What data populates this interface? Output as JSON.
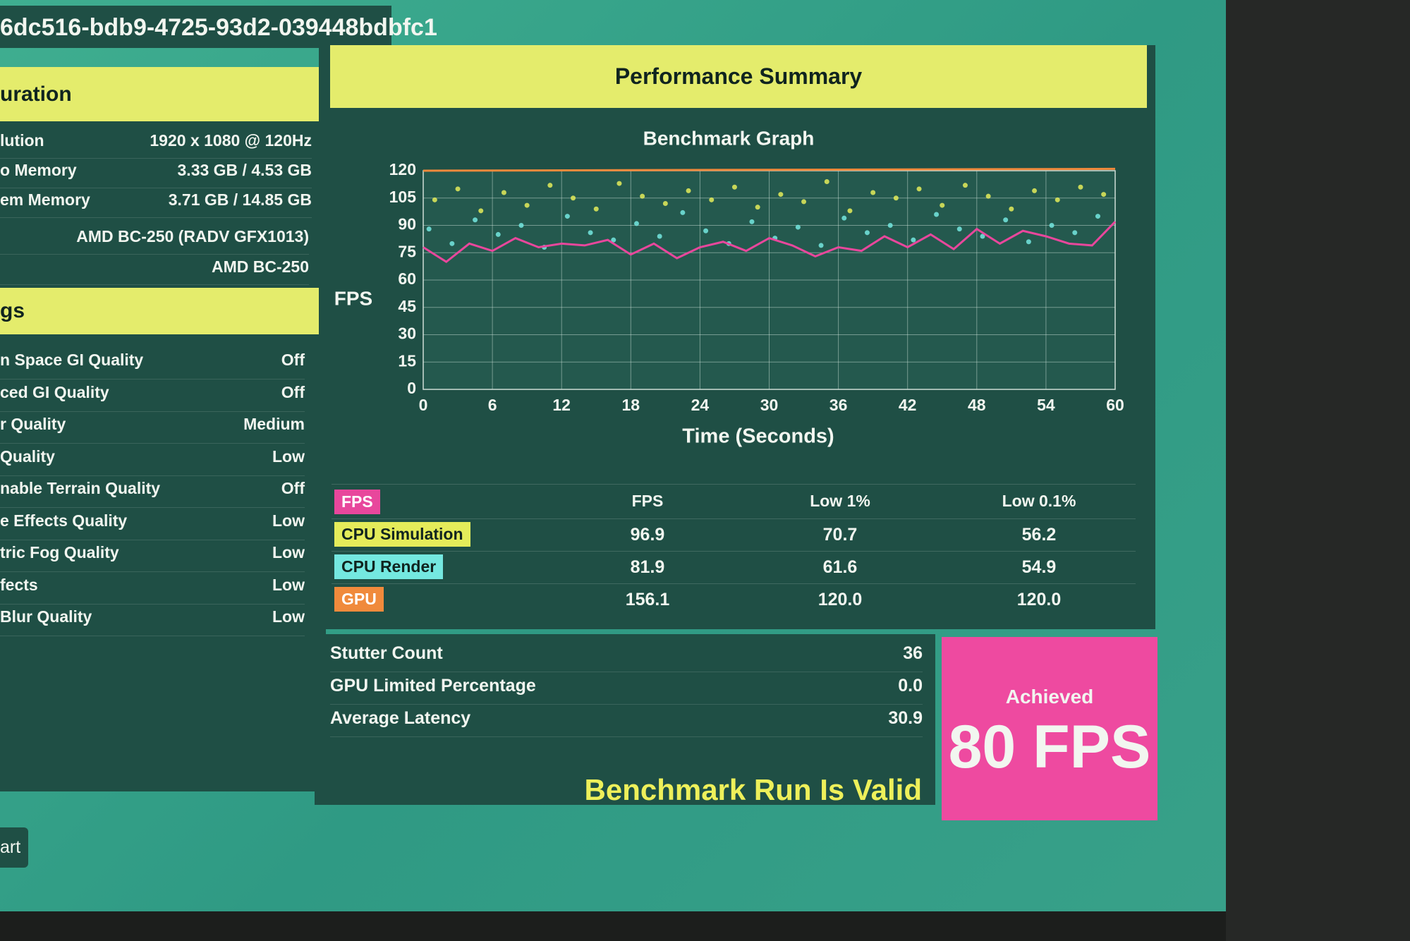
{
  "header": {
    "id": "6dc516-bdb9-4725-93d2-039448bdbfc1"
  },
  "config": {
    "title": "uration",
    "rows": [
      [
        "lution",
        "1920 x 1080 @ 120Hz"
      ],
      [
        "o Memory",
        "3.33 GB / 4.53 GB"
      ],
      [
        "em Memory",
        "3.71 GB / 14.85 GB"
      ]
    ],
    "gpu": [
      "AMD BC-250 (RADV GFX1013)",
      "AMD BC-250"
    ]
  },
  "settings": {
    "title": "gs",
    "rows": [
      [
        "n Space GI Quality",
        "Off"
      ],
      [
        "ced GI Quality",
        "Off"
      ],
      [
        "r Quality",
        "Medium"
      ],
      [
        "Quality",
        "Low"
      ],
      [
        "nable Terrain Quality",
        "Off"
      ],
      [
        "e Effects Quality",
        "Low"
      ],
      [
        "tric Fog Quality",
        "Low"
      ],
      [
        "fects",
        "Low"
      ],
      [
        "Blur Quality",
        "Low"
      ]
    ]
  },
  "button": "art",
  "summary": {
    "title": "Performance Summary",
    "columns": [
      "FPS",
      "Low 1%",
      "Low 0.1%"
    ],
    "rows": [
      [
        "96.9",
        "70.7",
        "56.2"
      ],
      [
        "81.9",
        "61.6",
        "54.9"
      ],
      [
        "156.1",
        "120.0",
        "120.0"
      ]
    ],
    "stats": [
      [
        "Stutter Count",
        "36"
      ],
      [
        "GPU Limited Percentage",
        "0.0"
      ],
      [
        "Average Latency",
        "30.9"
      ]
    ],
    "valid": "Benchmark Run Is Valid",
    "achieved_label": "Achieved",
    "achieved_value": "80 FPS"
  },
  "chart_data": {
    "type": "line",
    "title": "Benchmark Graph",
    "y_label": "FPS",
    "x_label": "Time (Seconds)",
    "xlim": [
      0,
      60
    ],
    "ylim": [
      0,
      120
    ],
    "xticks": [
      0,
      6,
      12,
      18,
      24,
      30,
      36,
      42,
      48,
      54,
      60
    ],
    "yticks": [
      0,
      15,
      30,
      45,
      60,
      75,
      90,
      105,
      120
    ],
    "grid": true,
    "series": [
      {
        "name": "FPS",
        "color": "#e8479c",
        "type": "line",
        "x": [
          0,
          2,
          4,
          6,
          8,
          10,
          12,
          14,
          16,
          18,
          20,
          22,
          24,
          26,
          28,
          30,
          32,
          34,
          36,
          38,
          40,
          42,
          44,
          46,
          48,
          50,
          52,
          54,
          56,
          58,
          60
        ],
        "values": [
          78,
          70,
          80,
          76,
          83,
          78,
          80,
          79,
          82,
          74,
          80,
          72,
          78,
          81,
          76,
          83,
          79,
          73,
          78,
          76,
          84,
          78,
          85,
          77,
          88,
          80,
          87,
          84,
          80,
          79,
          92
        ]
      },
      {
        "name": "CPU Simulation",
        "color": "#e4ec5a",
        "type": "scatter",
        "x": [
          1,
          3,
          5,
          7,
          9,
          11,
          13,
          15,
          17,
          19,
          21,
          23,
          25,
          27,
          29,
          31,
          33,
          35,
          37,
          39,
          41,
          43,
          45,
          47,
          49,
          51,
          53,
          55,
          57,
          59
        ],
        "values": [
          104,
          110,
          98,
          108,
          101,
          112,
          105,
          99,
          113,
          106,
          102,
          109,
          104,
          111,
          100,
          107,
          103,
          114,
          98,
          108,
          105,
          110,
          101,
          112,
          106,
          99,
          109,
          104,
          111,
          107
        ]
      },
      {
        "name": "CPU Render",
        "color": "#74e8e0",
        "type": "scatter",
        "x": [
          0.5,
          2.5,
          4.5,
          6.5,
          8.5,
          10.5,
          12.5,
          14.5,
          16.5,
          18.5,
          20.5,
          22.5,
          24.5,
          26.5,
          28.5,
          30.5,
          32.5,
          34.5,
          36.5,
          38.5,
          40.5,
          42.5,
          44.5,
          46.5,
          48.5,
          50.5,
          52.5,
          54.5,
          56.5,
          58.5
        ],
        "values": [
          88,
          80,
          93,
          85,
          90,
          78,
          95,
          86,
          82,
          91,
          84,
          97,
          87,
          80,
          92,
          83,
          89,
          79,
          94,
          86,
          90,
          82,
          96,
          88,
          84,
          93,
          81,
          90,
          86,
          95
        ]
      },
      {
        "name": "GPU",
        "color": "#f08a3c",
        "type": "line",
        "x": [
          0,
          60
        ],
        "values": [
          120,
          121
        ]
      }
    ]
  }
}
